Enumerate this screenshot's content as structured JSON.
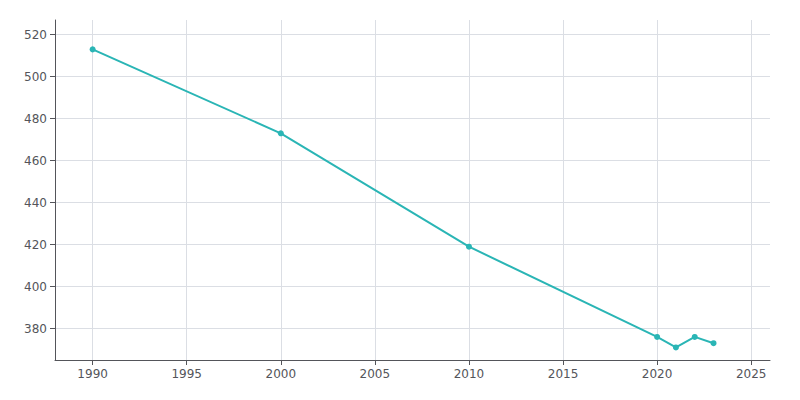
{
  "chart_data": {
    "type": "line",
    "x": [
      1990,
      2000,
      2010,
      2020,
      2021,
      2022,
      2023
    ],
    "values": [
      513,
      473,
      419,
      376,
      371,
      376,
      373
    ],
    "color": "#2ab5b5",
    "marker": "circle",
    "xlim": [
      1988,
      2026
    ],
    "xticks": [
      1990,
      1995,
      2000,
      2005,
      2010,
      2015,
      2020,
      2025
    ],
    "ylim": [
      365,
      527
    ],
    "yticks": [
      380,
      400,
      420,
      440,
      460,
      480,
      500,
      520
    ],
    "grid": true
  }
}
